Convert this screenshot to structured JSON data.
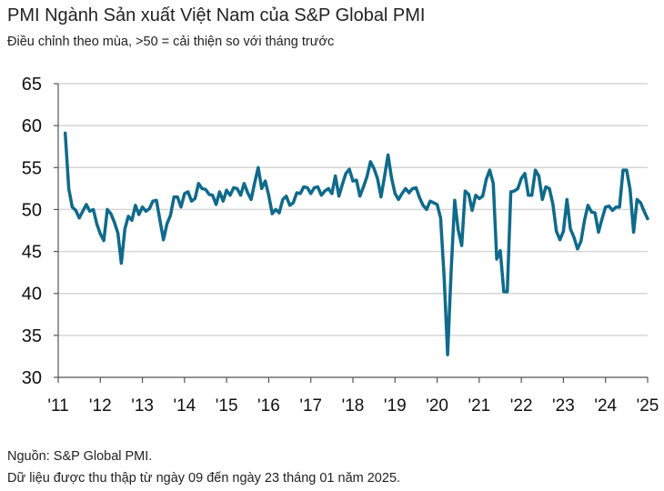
{
  "chart_data": {
    "type": "line",
    "title": "PMI Ngành Sản xuất Việt Nam của S&P Global PMI",
    "subtitle": "Điều chỉnh theo mùa, >50 = cải thiện so với tháng trước",
    "xlabel": "",
    "ylabel": "",
    "ylim": [
      30,
      65
    ],
    "yticks": [
      "30",
      "35",
      "40",
      "45",
      "50",
      "55",
      "60",
      "65"
    ],
    "xticks": [
      "'11",
      "'12",
      "'13",
      "'14",
      "'15",
      "'16",
      "'17",
      "'18",
      "'19",
      "'20",
      "'21",
      "'22",
      "'23",
      "'24",
      "'25"
    ],
    "grid": true,
    "start": "2011-03",
    "frequency": "monthly",
    "line_color": "#0f6a8b",
    "series": [
      {
        "name": "PMI",
        "values": [
          59.1,
          52.5,
          50.3,
          49.9,
          49.0,
          49.8,
          50.6,
          49.8,
          50.0,
          48.3,
          47.1,
          46.3,
          50.0,
          49.5,
          48.5,
          47.2,
          43.6,
          47.7,
          49.2,
          48.7,
          50.5,
          49.4,
          50.3,
          49.8,
          50.1,
          51.0,
          51.1,
          48.7,
          46.4,
          48.3,
          49.3,
          51.5,
          51.5,
          50.3,
          51.9,
          52.1,
          51.0,
          51.3,
          53.1,
          52.5,
          52.4,
          51.8,
          51.7,
          50.6,
          52.1,
          51.0,
          52.3,
          51.7,
          52.6,
          52.5,
          51.7,
          53.1,
          52.0,
          51.2,
          53.2,
          55.0,
          52.5,
          53.4,
          51.7,
          49.5,
          50.0,
          49.6,
          51.2,
          51.6,
          50.5,
          50.8,
          52.0,
          51.9,
          52.7,
          52.6,
          51.9,
          52.6,
          52.7,
          51.7,
          52.2,
          52.5,
          51.9,
          54.0,
          51.6,
          53.0,
          54.3,
          54.8,
          53.4,
          53.5,
          51.6,
          52.7,
          53.9,
          55.7,
          54.9,
          53.7,
          51.5,
          53.9,
          56.5,
          53.8,
          51.9,
          51.2,
          51.9,
          52.5,
          52.0,
          52.5,
          52.6,
          51.4,
          50.5,
          50.0,
          51.0,
          50.8,
          50.6,
          49.0,
          41.9,
          32.7,
          42.7,
          51.1,
          47.6,
          45.7,
          52.2,
          51.8,
          49.9,
          51.7,
          51.3,
          51.6,
          53.6,
          54.7,
          53.1,
          44.1,
          45.1,
          40.2,
          40.2,
          52.1,
          52.2,
          52.5,
          53.7,
          54.3,
          51.7,
          51.7,
          54.7,
          54.0,
          51.2,
          52.7,
          52.5,
          50.6,
          47.4,
          46.4,
          47.4,
          51.2,
          47.7,
          46.7,
          45.3,
          46.2,
          48.7,
          50.5,
          49.7,
          49.6,
          47.3,
          48.9,
          50.3,
          50.4,
          49.9,
          50.3,
          50.3,
          54.7,
          54.7,
          52.4,
          47.3,
          51.2,
          50.8,
          49.8,
          48.9
        ]
      }
    ]
  },
  "footer": {
    "source": "Nguồn: S&P Global PMI.",
    "note": "Dữ liệu được thu thập từ ngày 09 đến ngày 23 tháng 01 năm 2025."
  }
}
